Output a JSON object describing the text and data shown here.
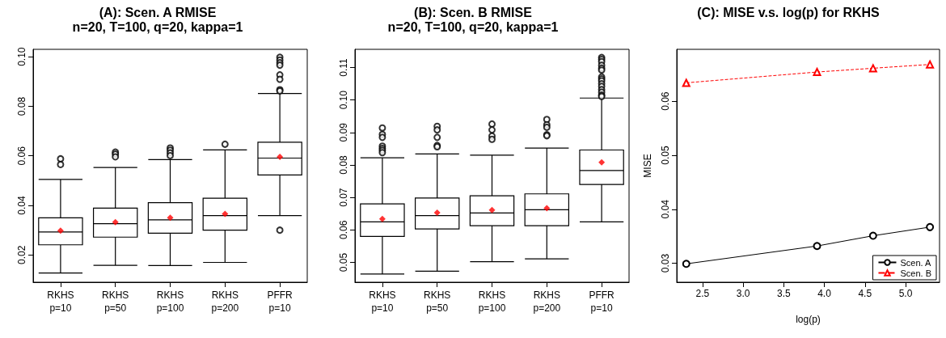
{
  "chart_data": [
    {
      "type": "box",
      "title": "(A): Scen. A RMISE",
      "subtitle": "n=20, T=100, q=20, kappa=1",
      "categories": [
        "RKHS\np=10",
        "RKHS\np=50",
        "RKHS\np=100",
        "RKHS\np=200",
        "PFFR\np=10"
      ],
      "ylim": [
        0.009,
        0.103
      ],
      "yticks": [
        0.02,
        0.04,
        0.06,
        0.08,
        {
          "value": 0.1,
          "label": "0.10"
        }
      ],
      "boxes": [
        {
          "low": 0.0127,
          "q1": 0.0241,
          "median": 0.0293,
          "q3": 0.035,
          "high": 0.0505,
          "mean": 0.0298,
          "outliers": [
            0.0588,
            0.0565
          ]
        },
        {
          "low": 0.0158,
          "q1": 0.0272,
          "median": 0.0326,
          "q3": 0.0389,
          "high": 0.0553,
          "mean": 0.0332,
          "outliers": [
            0.0615,
            0.0607,
            0.0596
          ]
        },
        {
          "low": 0.0157,
          "q1": 0.0288,
          "median": 0.0342,
          "q3": 0.0411,
          "high": 0.0585,
          "mean": 0.035,
          "outliers": [
            0.0632,
            0.0623,
            0.0612,
            0.0601
          ]
        },
        {
          "low": 0.017,
          "q1": 0.03,
          "median": 0.0359,
          "q3": 0.0429,
          "high": 0.0624,
          "mean": 0.0366,
          "outliers": [
            0.0647
          ]
        },
        {
          "low": 0.0359,
          "q1": 0.0523,
          "median": 0.0591,
          "q3": 0.0655,
          "high": 0.0852,
          "mean": 0.0596,
          "outliers": [
            0.0998,
            0.0987,
            0.0976,
            0.0966,
            0.0927,
            0.0909,
            0.0867,
            0.0862,
            0.03
          ]
        }
      ]
    },
    {
      "type": "box",
      "title": "(B): Scen. B RMISE",
      "subtitle": "n=20, T=100, q=20, kappa=1",
      "categories": [
        "RKHS\np=10",
        "RKHS\np=50",
        "RKHS\np=100",
        "RKHS\np=200",
        "PFFR\np=10"
      ],
      "ylim": [
        0.0439,
        0.1156
      ],
      "yticks": [
        0.05,
        0.06,
        0.07,
        0.08,
        0.09,
        {
          "value": 0.1,
          "label": "0.10"
        },
        0.11
      ],
      "boxes": [
        {
          "low": 0.0464,
          "q1": 0.058,
          "median": 0.0625,
          "q3": 0.068,
          "high": 0.0822,
          "mean": 0.0634,
          "outliers": [
            0.0914,
            0.0894,
            0.0885,
            0.0858,
            0.0851,
            0.0845,
            0.0838
          ]
        },
        {
          "low": 0.0473,
          "q1": 0.0603,
          "median": 0.0644,
          "q3": 0.0698,
          "high": 0.0834,
          "mean": 0.0653,
          "outliers": [
            0.0919,
            0.0908,
            0.0885,
            0.086,
            0.0856
          ]
        },
        {
          "low": 0.0502,
          "q1": 0.0613,
          "median": 0.0652,
          "q3": 0.0705,
          "high": 0.083,
          "mean": 0.0661,
          "outliers": [
            0.0926,
            0.0908,
            0.0889,
            0.0879
          ]
        },
        {
          "low": 0.0511,
          "q1": 0.0613,
          "median": 0.0662,
          "q3": 0.0711,
          "high": 0.0852,
          "mean": 0.0667,
          "outliers": [
            0.094,
            0.0924,
            0.0916,
            0.0893,
            0.089
          ]
        },
        {
          "low": 0.0625,
          "q1": 0.074,
          "median": 0.0783,
          "q3": 0.0846,
          "high": 0.1006,
          "mean": 0.0808,
          "outliers": [
            0.1131,
            0.1125,
            0.1118,
            0.1107,
            0.1098,
            0.1092,
            0.1071,
            0.1065,
            0.1059,
            0.105,
            0.1042,
            0.1032,
            0.1024,
            0.1015,
            0.1011
          ]
        }
      ]
    },
    {
      "type": "line",
      "title": "(C): MISE v.s. log(p) for RKHS",
      "xlabel": "log(p)",
      "ylabel": "MISE",
      "x": [
        2.3,
        3.91,
        4.6,
        5.3
      ],
      "xlim": [
        2.183,
        5.418
      ],
      "xticks": [
        2.5,
        {
          "value": 3,
          "label": "3.0"
        },
        3.5,
        {
          "value": 4,
          "label": "4.0"
        },
        4.5,
        {
          "value": 5,
          "label": "5.0"
        }
      ],
      "ylim": [
        0.0265,
        0.0696
      ],
      "yticks": [
        0.03,
        0.04,
        0.05,
        0.06
      ],
      "legend": "bottom right",
      "series": [
        {
          "name": "Scen. A",
          "color": "#000000",
          "marker": "circle",
          "line_style": "solid",
          "values": [
            0.0299,
            0.0332,
            0.0351,
            0.0367
          ]
        },
        {
          "name": "Scen. B",
          "color": "#ff0000",
          "marker": "triangle",
          "line_style": "dashed",
          "values": [
            0.0634,
            0.0654,
            0.0661,
            0.0668
          ]
        }
      ]
    }
  ]
}
